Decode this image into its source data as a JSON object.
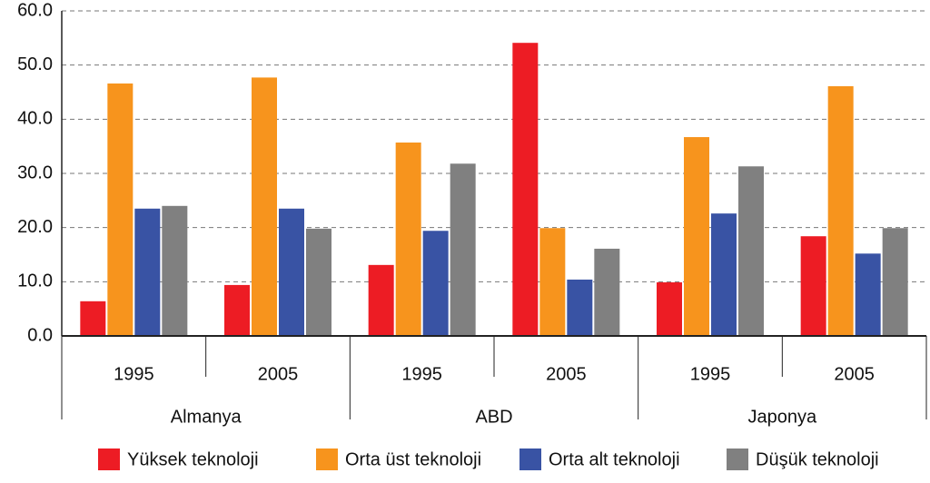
{
  "chart_data": {
    "type": "bar",
    "categories": [
      "1995",
      "2005",
      "1995",
      "2005",
      "1995",
      "2005"
    ],
    "groups": [
      "Almanya",
      "ABD",
      "Japonya"
    ],
    "series": [
      {
        "name": "Yüksek teknoloji",
        "color": "#ed1c24",
        "values": [
          6.4,
          9.4,
          13.1,
          54.1,
          9.9,
          18.4
        ]
      },
      {
        "name": "Orta üst teknoloji",
        "color": "#f7941d",
        "values": [
          46.6,
          47.7,
          35.7,
          19.9,
          36.7,
          46.1
        ]
      },
      {
        "name": "Orta alt teknoloji",
        "color": "#3953a4",
        "values": [
          23.5,
          23.5,
          19.4,
          10.4,
          22.6,
          15.2
        ]
      },
      {
        "name": "Düşük teknoloji",
        "color": "#808080",
        "values": [
          24.0,
          19.8,
          31.8,
          16.1,
          31.3,
          19.9
        ]
      }
    ],
    "ylim": [
      0,
      60
    ],
    "yticks": [
      {
        "value": 0,
        "label": "0.0"
      },
      {
        "value": 10,
        "label": "10.0"
      },
      {
        "value": 20,
        "label": "20.0"
      },
      {
        "value": 30,
        "label": "30.0"
      },
      {
        "value": 40,
        "label": "40.0"
      },
      {
        "value": 50,
        "label": "50.0"
      },
      {
        "value": 60,
        "label": "60.0"
      }
    ],
    "grid": true
  }
}
